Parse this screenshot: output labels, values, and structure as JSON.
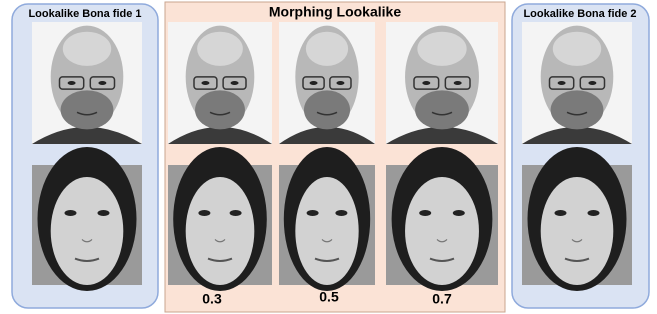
{
  "panels": {
    "left": {
      "title": "Lookalike Bona fide 1"
    },
    "center": {
      "title": "Morphing Lookalike",
      "factors": [
        "0.3",
        "0.5",
        "0.7"
      ]
    },
    "right": {
      "title": "Lookalike Bona fide 2"
    }
  }
}
